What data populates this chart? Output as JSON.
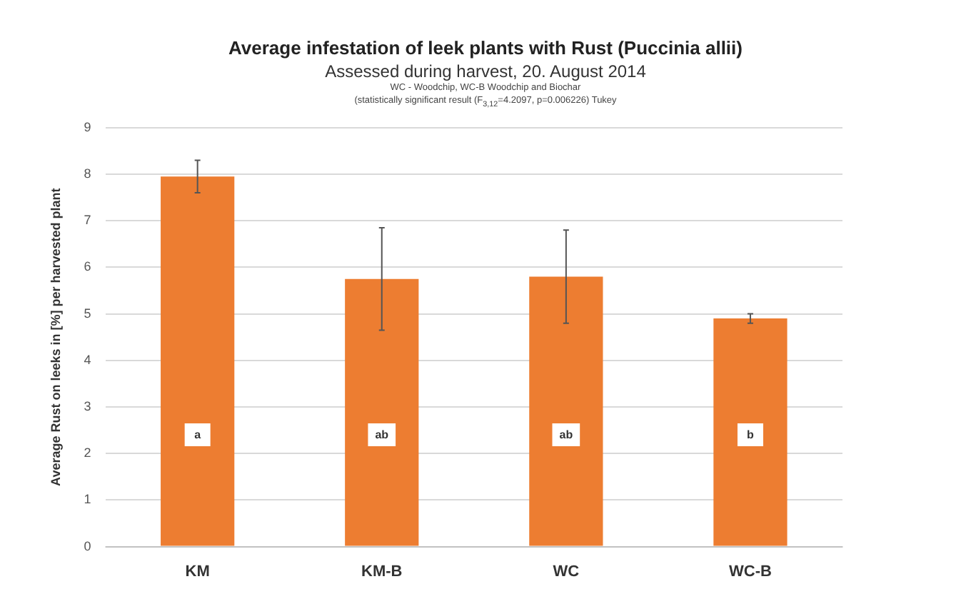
{
  "chart_data": {
    "type": "bar",
    "title": "Average infestation of leek plants with Rust (Puccinia allii)",
    "subtitle": "Assessed during harvest, 20. August 2014",
    "ylabel": "Average Rust on leeks in [%] per harvested plant",
    "categories": [
      "KM",
      "KM-B",
      "WC",
      "WC-B"
    ],
    "values": [
      7.95,
      5.75,
      5.8,
      4.9
    ],
    "errors": [
      0.35,
      1.1,
      1.0,
      0.1
    ],
    "color": "#ed7d31",
    "ylim": [
      0,
      9
    ],
    "yticks": [
      0,
      1,
      2,
      3,
      4,
      5,
      6,
      7,
      8,
      9
    ],
    "grid": "y",
    "annotations": [
      "WC - Woodchip, WC-B Woodchip and Biochar",
      "(statistically significant result (F$_{3,12}$=4.2097, p=0.006226) Tukey",
      {
        "text": "a",
        "x": "KM",
        "y": 2.4
      },
      {
        "text": "ab",
        "x": "KM-B",
        "y": 2.4
      },
      {
        "text": "ab",
        "x": "WC",
        "y": 2.4
      },
      {
        "text": "b",
        "x": "WC-B",
        "y": 2.4
      }
    ]
  }
}
